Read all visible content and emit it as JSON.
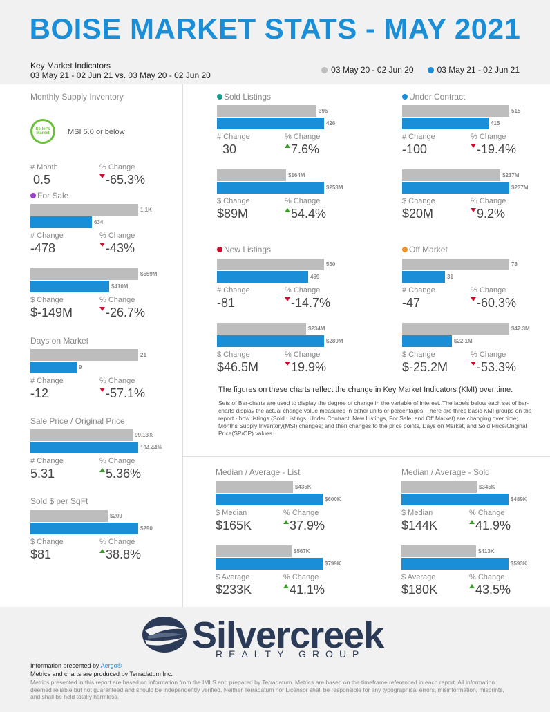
{
  "title": "BOISE MARKET STATS - MAY 2021",
  "kmi": {
    "title": "Key Market Indicators",
    "range": "03 May 21 - 02 Jun 21 vs. 03 May 20 - 02 Jun 20"
  },
  "legend": {
    "prev": "03 May 20 - 02 Jun 20",
    "curr": "03 May 21 - 02 Jun 21",
    "prev_color": "#bdbdbd",
    "curr_color": "#1a8fd8"
  },
  "msi": {
    "title": "Monthly Supply Inventory",
    "seal": "Seller's Market",
    "text": "MSI 5.0 or below",
    "lbl1": "# Month",
    "val1": "0.5",
    "lbl2": "% Change",
    "val2": "-65.3%"
  },
  "for_sale": {
    "title": "For Sale",
    "color": "#9b3fc7",
    "b1": {
      "prev": "1.1K",
      "curr": "634",
      "lbl1": "# Change",
      "val1": "-478",
      "lbl2": "% Change",
      "val2": "-43%"
    },
    "b2": {
      "prev": "$559M",
      "curr": "$410M",
      "lbl1": "$ Change",
      "val1": "$-149M",
      "lbl2": "% Change",
      "val2": "-26.7%"
    }
  },
  "dom": {
    "title": "Days on Market",
    "prev": "21",
    "curr": "9",
    "lbl1": "# Change",
    "val1": "-12",
    "lbl2": "% Change",
    "val2": "-57.1%"
  },
  "spop": {
    "title": "Sale Price / Original Price",
    "prev": "99.13%",
    "curr": "104.44%",
    "lbl1": "# Change",
    "val1": "5.31",
    "lbl2": "% Change",
    "val2": "5.36%"
  },
  "sqft": {
    "title": "Sold $ per SqFt",
    "prev": "$209",
    "curr": "$290",
    "lbl1": "$ Change",
    "val1": "$81",
    "lbl2": "% Change",
    "val2": "38.8%"
  },
  "sold": {
    "title": "Sold Listings",
    "color": "#1a9a8a",
    "b1": {
      "prev": "396",
      "curr": "426",
      "lbl1": "# Change",
      "val1": "30",
      "lbl2": "% Change",
      "val2": "7.6%"
    },
    "b2": {
      "prev": "$164M",
      "curr": "$253M",
      "lbl1": "$ Change",
      "val1": "$89M",
      "lbl2": "% Change",
      "val2": "54.4%"
    }
  },
  "uc": {
    "title": "Under Contract",
    "color": "#1a8fd8",
    "b1": {
      "prev": "515",
      "curr": "415",
      "lbl1": "# Change",
      "val1": "-100",
      "lbl2": "% Change",
      "val2": "-19.4%"
    },
    "b2": {
      "prev": "$217M",
      "curr": "$237M",
      "lbl1": "$ Change",
      "val1": "$20M",
      "lbl2": "% Change",
      "val2": "9.2%"
    }
  },
  "nl": {
    "title": "New Listings",
    "color": "#c8102e",
    "b1": {
      "prev": "550",
      "curr": "469",
      "lbl1": "# Change",
      "val1": "-81",
      "lbl2": "% Change",
      "val2": "-14.7%"
    },
    "b2": {
      "prev": "$234M",
      "curr": "$280M",
      "lbl1": "$ Change",
      "val1": "$46.5M",
      "lbl2": "% Change",
      "val2": "19.9%"
    }
  },
  "om": {
    "title": "Off Market",
    "color": "#f0922b",
    "b1": {
      "prev": "78",
      "curr": "31",
      "lbl1": "# Change",
      "val1": "-47",
      "lbl2": "% Change",
      "val2": "-60.3%"
    },
    "b2": {
      "prev": "$47.3M",
      "curr": "$22.1M",
      "lbl1": "$ Change",
      "val1": "$-25.2M",
      "lbl2": "% Change",
      "val2": "-53.3%"
    }
  },
  "description": {
    "main": "The figures on these charts reflect the change in Key Market Indicators (KMI) over time.",
    "sub": "Sets of Bar-charts are used to display the degree of change in the variable of interest. The labels below each set of bar-charts display the actual change value measured in either units or percentages. There are three basic KMI groups on the report - how listings (Sold Listings, Under Contract, New Listings, For Sale, and Off Market) are changing over time; Months Supply Inventory(MSI) changes; and then changes to the price points, Days on Market, and Sold Price/Original Price(SP/OP) values."
  },
  "med_list": {
    "title": "Median / Average - List",
    "b1": {
      "prev": "$435K",
      "curr": "$600K",
      "lbl1": "$ Median",
      "val1": "$165K",
      "lbl2": "% Change",
      "val2": "37.9%"
    },
    "b2": {
      "prev": "$567K",
      "curr": "$799K",
      "lbl1": "$ Average",
      "val1": "$233K",
      "lbl2": "% Change",
      "val2": "41.1%"
    }
  },
  "med_sold": {
    "title": "Median / Average - Sold",
    "b1": {
      "prev": "$345K",
      "curr": "$489K",
      "lbl1": "$ Median",
      "val1": "$144K",
      "lbl2": "% Change",
      "val2": "41.9%"
    },
    "b2": {
      "prev": "$413K",
      "curr": "$593K",
      "lbl1": "$ Average",
      "val1": "$180K",
      "lbl2": "% Change",
      "val2": "43.5%"
    }
  },
  "brand": {
    "name": "Silvercreek",
    "sub": "REALTY GROUP"
  },
  "footer": {
    "presented": "Information presented by",
    "presented_by": "Aergo®",
    "produced": "Metrics and charts are produced by Terradatum Inc.",
    "disclaimer": "Metrics presented in this report are based on information from the IMLS and prepared by Terradatum. Metrics are based on the timeframe referenced in each report. All information deemed reliable but not guaranteed and should be independently verified. Neither Terradatum nor Licensor shall be responsible for any typographical errors, misinformation, misprints, and shall be held totally harmless."
  }
}
